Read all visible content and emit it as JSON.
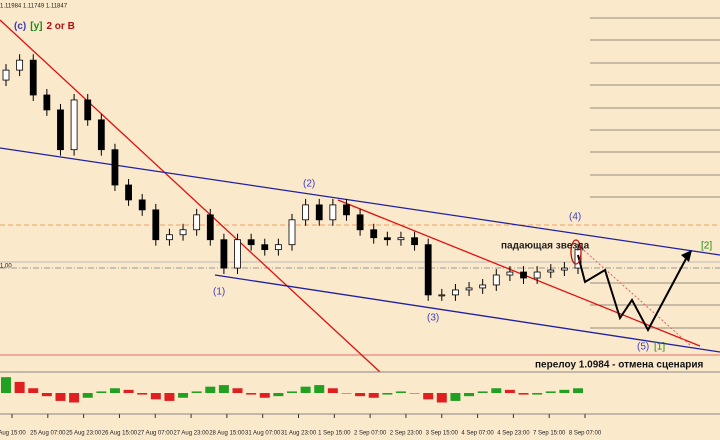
{
  "chart_data": {
    "type": "candlestick",
    "ohlc_header": "1.11984 1.11749 1.11847",
    "title_parts": [
      {
        "text": "(c)",
        "color": "#3b3bb5"
      },
      {
        "text": "[y]",
        "color": "#1a8a1a"
      },
      {
        "text": "2 or B",
        "color": "#b01010"
      }
    ],
    "level_label": "1.00",
    "ylim": [
      1.0954,
      1.1698
    ],
    "up_color": "#ffffff",
    "down_color": "#000000",
    "open": [
      1.1537,
      1.1557,
      1.1577,
      1.1507,
      1.1477,
      1.1397,
      1.1497,
      1.1457,
      1.1397,
      1.1326,
      1.1296,
      1.1276,
      1.1216,
      1.1226,
      1.1236,
      1.1266,
      1.1216,
      1.1159,
      1.1216,
      1.1206,
      1.1196,
      1.1206,
      1.1256,
      1.1286,
      1.1256,
      1.1286,
      1.1266,
      1.1236,
      1.122,
      1.1216,
      1.122,
      1.1206,
      1.1105,
      1.1105,
      1.1115,
      1.1119,
      1.1125,
      1.1145,
      1.1151,
      1.1139,
      1.1151,
      1.1155,
      1.1159
    ],
    "high": [
      1.1569,
      1.1589,
      1.1589,
      1.1519,
      1.1489,
      1.1509,
      1.1509,
      1.1469,
      1.1409,
      1.1338,
      1.1308,
      1.1288,
      1.1238,
      1.1248,
      1.1278,
      1.1278,
      1.1228,
      1.1228,
      1.1228,
      1.1218,
      1.1218,
      1.1268,
      1.1298,
      1.1298,
      1.1298,
      1.1298,
      1.1278,
      1.1248,
      1.1232,
      1.1232,
      1.1232,
      1.1218,
      1.1117,
      1.1127,
      1.1131,
      1.1137,
      1.1157,
      1.1163,
      1.1163,
      1.1163,
      1.1167,
      1.1171,
      1.1208
    ],
    "low": [
      1.1525,
      1.1545,
      1.1495,
      1.1465,
      1.1385,
      1.1385,
      1.1445,
      1.1385,
      1.1314,
      1.1284,
      1.1264,
      1.1204,
      1.1204,
      1.1214,
      1.1224,
      1.1204,
      1.1147,
      1.1147,
      1.1194,
      1.1184,
      1.1184,
      1.1194,
      1.1244,
      1.1244,
      1.1244,
      1.1254,
      1.1224,
      1.1208,
      1.1204,
      1.1204,
      1.1194,
      1.1093,
      1.1093,
      1.1093,
      1.1103,
      1.1107,
      1.1113,
      1.1133,
      1.1127,
      1.1127,
      1.1139,
      1.1143,
      1.1147
    ],
    "close": [
      1.1557,
      1.1577,
      1.1507,
      1.1477,
      1.1397,
      1.1497,
      1.1457,
      1.1397,
      1.1326,
      1.1296,
      1.1276,
      1.1216,
      1.1226,
      1.1236,
      1.1266,
      1.1216,
      1.1159,
      1.1216,
      1.1206,
      1.1196,
      1.1206,
      1.1256,
      1.1286,
      1.1256,
      1.1286,
      1.1266,
      1.1236,
      1.122,
      1.1216,
      1.122,
      1.1206,
      1.1105,
      1.1105,
      1.1115,
      1.1119,
      1.1125,
      1.1145,
      1.1151,
      1.1139,
      1.1151,
      1.1155,
      1.1159,
      1.1196
    ],
    "x_labels": [
      "Aug 15:00",
      "25 Aug 07:00",
      "25 Aug 23:00",
      "26 Aug 15:00",
      "27 Aug 07:00",
      "27 Aug 23:00",
      "28 Aug 15:00",
      "31 Aug 07:00",
      "31 Aug 23:00",
      "1 Sep 15:00",
      "2 Sep 07:00",
      "2 Sep 23:00",
      "3 Sep 15:00",
      "4 Sep 07:00",
      "4 Sep 23:00",
      "7 Sep 15:00",
      "8 Sep 07:00"
    ],
    "oscillator": {
      "ylim": [
        -12,
        12
      ],
      "rising_color": "#22a022",
      "falling_color": "#e02020",
      "values": [
        10,
        7,
        3,
        -2,
        -5,
        -6,
        -3,
        1,
        3,
        2,
        -1,
        -4,
        -5,
        -3,
        1,
        4,
        5,
        3,
        -1,
        -3,
        -2,
        1,
        4,
        5,
        3,
        0,
        -2,
        -3,
        -1,
        1,
        0,
        -4,
        -6,
        -5,
        -2,
        1,
        3,
        2,
        -1,
        -1,
        1,
        2,
        3
      ]
    },
    "annotations": {
      "w1": "(1)",
      "w2": "(2)",
      "w3": "(3)",
      "w4": "(4)",
      "w5": "(5)",
      "b1": "[1]",
      "b2": "[2]",
      "star": "падающая звезда",
      "cancel": "перелоу 1.0984 - отмена сценария"
    }
  }
}
